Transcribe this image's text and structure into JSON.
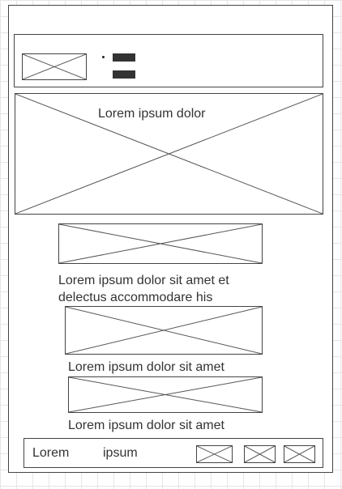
{
  "hero": {
    "caption": "Lorem ipsum dolor"
  },
  "content": {
    "paragraph_line_1": "Lorem ipsum dolor sit amet et",
    "paragraph_line_2": "delectus accommodare his",
    "caption_1": "Lorem ipsum dolor sit amet",
    "caption_2": "Lorem ipsum dolor sit amet"
  },
  "footer": {
    "link_1": "Lorem",
    "link_2": "ipsum"
  },
  "icons": {
    "menu": "hamburger-menu-icon",
    "placeholder": "image-placeholder-icon"
  }
}
